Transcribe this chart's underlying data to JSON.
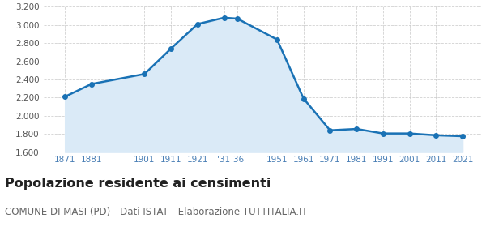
{
  "years": [
    1871,
    1881,
    1901,
    1911,
    1921,
    1931,
    1936,
    1951,
    1961,
    1971,
    1981,
    1991,
    2001,
    2011,
    2021
  ],
  "population": [
    2210,
    2350,
    2460,
    2740,
    3010,
    3080,
    3070,
    2840,
    2190,
    1840,
    1855,
    1805,
    1805,
    1785,
    1775
  ],
  "line_color": "#1a72b5",
  "fill_color": "#daeaf7",
  "marker_color": "#1a72b5",
  "plot_bg_color": "#ffffff",
  "fig_bg_color": "#ffffff",
  "grid_color": "#cccccc",
  "ylim": [
    1600,
    3200
  ],
  "yticks": [
    1600,
    1800,
    2000,
    2200,
    2400,
    2600,
    2800,
    3000,
    3200
  ],
  "xtick_positions": [
    1871,
    1881,
    1901,
    1911,
    1921,
    1931,
    1936,
    1951,
    1961,
    1971,
    1981,
    1991,
    2001,
    2011,
    2021
  ],
  "xtick_labels": [
    "1871",
    "1881",
    "1901",
    "1911",
    "1921",
    "'31",
    "'36",
    "1951",
    "1961",
    "1971",
    "1981",
    "1991",
    "2001",
    "2011",
    "2021"
  ],
  "xlim_left": 1863,
  "xlim_right": 2028,
  "title": "Popolazione residente ai censimenti",
  "subtitle": "COMUNE DI MASI (PD) - Dati ISTAT - Elaborazione TUTTITALIA.IT",
  "title_fontsize": 11.5,
  "subtitle_fontsize": 8.5,
  "tick_label_color": "#4a7fb5",
  "ytick_label_color": "#555555"
}
